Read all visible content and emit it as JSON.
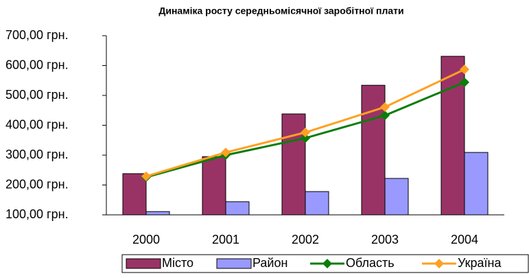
{
  "chart_data": {
    "type": "bar-line",
    "title": "Динаміка росту середньомісячної заробітної плати",
    "categories": [
      "2000",
      "2001",
      "2002",
      "2003",
      "2004"
    ],
    "series": [
      {
        "name": "Місто",
        "type": "bar",
        "color": "#993366",
        "values": [
          238,
          295,
          438,
          534,
          631
        ]
      },
      {
        "name": "Район",
        "type": "bar",
        "color": "#9999ff",
        "values": [
          111,
          144,
          178,
          222,
          309
        ]
      },
      {
        "name": "Область",
        "type": "line",
        "color": "#0a7d0a",
        "values": [
          226,
          300,
          357,
          433,
          544
        ]
      },
      {
        "name": "Україна",
        "type": "line",
        "color": "#ffa020",
        "values": [
          229,
          309,
          376,
          461,
          587
        ]
      }
    ],
    "ylim": [
      100,
      700
    ],
    "yticks": [
      {
        "value": 100,
        "label": "100,00 грн."
      },
      {
        "value": 200,
        "label": "200,00 грн."
      },
      {
        "value": 300,
        "label": "300,00 грн."
      },
      {
        "value": 400,
        "label": "400,00 грн."
      },
      {
        "value": 500,
        "label": "500,00 грн."
      },
      {
        "value": 600,
        "label": "600,00 грн."
      },
      {
        "value": 700,
        "label": "700,00 грн."
      }
    ],
    "legend": "bottom"
  }
}
